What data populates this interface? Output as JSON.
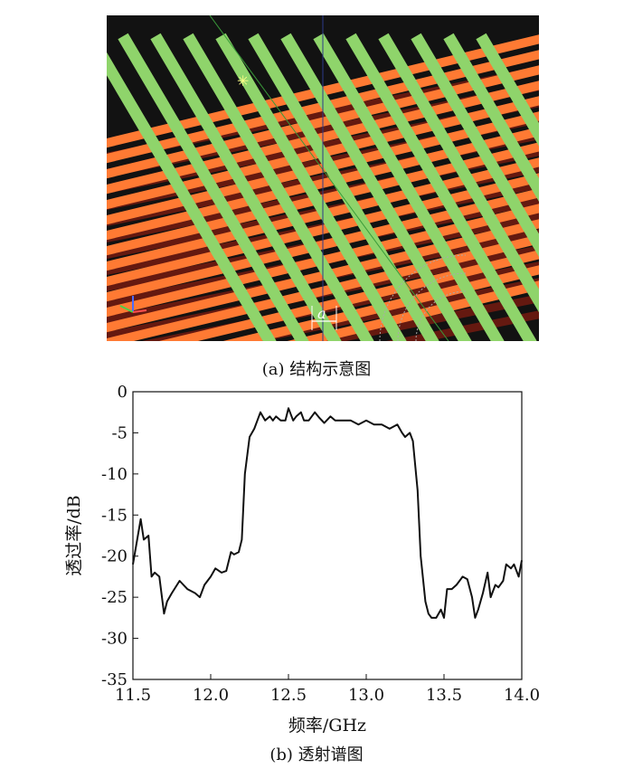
{
  "figure_a": {
    "caption": "(a) 结构示意图",
    "dimension_label": "a",
    "colors": {
      "background": "#121212",
      "orange_rods": "#ff7a33",
      "green_rods": "#8fd46b",
      "dark_rods": "#6e1a10"
    }
  },
  "figure_b": {
    "caption": "(b) 透射谱图"
  },
  "chart_data": {
    "type": "line",
    "title": "",
    "xlabel": "频率/GHz",
    "ylabel": "透过率/dB",
    "xlim": [
      11.5,
      14.0
    ],
    "ylim": [
      -35,
      0
    ],
    "xticks": [
      "11.5",
      "12.0",
      "12.5",
      "13.0",
      "13.5",
      "14.0"
    ],
    "yticks": [
      "0",
      "-5",
      "-10",
      "-15",
      "-20",
      "-25",
      "-30",
      "-35"
    ],
    "grid": false,
    "series": [
      {
        "color": "#111111",
        "x": [
          11.5,
          11.55,
          11.57,
          11.6,
          11.62,
          11.64,
          11.67,
          11.7,
          11.72,
          11.75,
          11.8,
          11.85,
          11.9,
          11.93,
          11.96,
          12.0,
          12.03,
          12.07,
          12.1,
          12.13,
          12.15,
          12.18,
          12.2,
          12.22,
          12.25,
          12.28,
          12.3,
          12.32,
          12.35,
          12.38,
          12.4,
          12.42,
          12.45,
          12.48,
          12.5,
          12.53,
          12.55,
          12.58,
          12.6,
          12.63,
          12.67,
          12.7,
          12.73,
          12.77,
          12.8,
          12.85,
          12.9,
          12.95,
          13.0,
          13.05,
          13.1,
          13.15,
          13.2,
          13.23,
          13.25,
          13.28,
          13.3,
          13.33,
          13.35,
          13.38,
          13.4,
          13.42,
          13.45,
          13.48,
          13.5,
          13.52,
          13.55,
          13.58,
          13.6,
          13.62,
          13.65,
          13.68,
          13.7,
          13.72,
          13.75,
          13.78,
          13.8,
          13.83,
          13.85,
          13.88,
          13.9,
          13.93,
          13.95,
          13.98,
          14.0
        ],
        "values": [
          -21,
          -15.5,
          -18,
          -17.5,
          -22.5,
          -22,
          -22.5,
          -27,
          -25.5,
          -24.5,
          -23,
          -24,
          -24.5,
          -25,
          -23.5,
          -22.5,
          -21.5,
          -22,
          -21.8,
          -19.5,
          -19.8,
          -19.5,
          -18,
          -10,
          -5.5,
          -4.5,
          -3.5,
          -2.5,
          -3.5,
          -3,
          -3.5,
          -3,
          -3.5,
          -3.5,
          -2,
          -3.5,
          -3,
          -2.5,
          -3.5,
          -3.5,
          -2.5,
          -3.2,
          -3.8,
          -3,
          -3.5,
          -3.5,
          -3.5,
          -4,
          -3.5,
          -4,
          -4,
          -4.5,
          -4,
          -5,
          -5.5,
          -5,
          -6,
          -12,
          -20,
          -25.5,
          -27,
          -27.5,
          -27.5,
          -26.5,
          -27.5,
          -24,
          -24,
          -23.5,
          -23,
          -22.5,
          -22.8,
          -25,
          -27.5,
          -26.5,
          -24.5,
          -22,
          -25,
          -23.5,
          -23.8,
          -23,
          -21,
          -21.5,
          -21,
          -22.5,
          -20.5
        ]
      }
    ]
  }
}
